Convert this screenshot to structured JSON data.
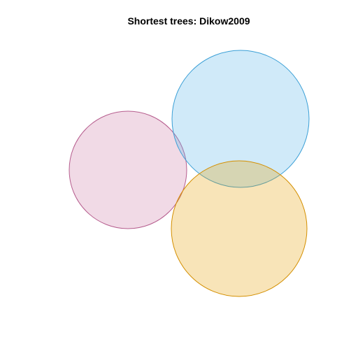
{
  "title": "Shortest trees: Dikow2009",
  "diagram": {
    "type": "venn",
    "sets": [
      {
        "id": "set-pink",
        "fill": "#cc79a7",
        "stroke": "#b65d8e"
      },
      {
        "id": "set-blue",
        "fill": "#56b4e9",
        "stroke": "#3a9fd6"
      },
      {
        "id": "set-orange",
        "fill": "#e69f00",
        "stroke": "#d48f00"
      }
    ],
    "fill_opacity": 0.28,
    "labels_shown": false
  }
}
